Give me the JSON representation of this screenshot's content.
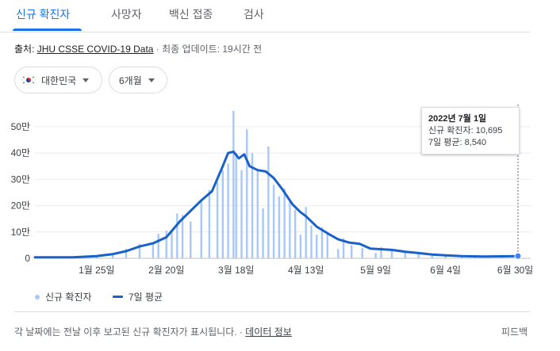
{
  "tabs": [
    {
      "label": "신규 확진자"
    },
    {
      "label": "사망자"
    },
    {
      "label": "백신 접종"
    },
    {
      "label": "검사"
    }
  ],
  "source": {
    "prefix": "출처: ",
    "link": "JHU CSSE COVID-19 Data",
    "suffix": " · 최종 업데이트: 19시간 전"
  },
  "filters": {
    "country": "대한민국",
    "range": "6개월"
  },
  "tooltip": {
    "date": "2022년 7월 1일",
    "cases": "신규 확진자: 10,695",
    "avg": "7일 평균: 8,540"
  },
  "legend": {
    "bars": "신규 확진자",
    "line": "7일 평균"
  },
  "footer": {
    "note": "각 날짜에는 전날 이후 보고된 신규 확진자가 표시됩니다. · ",
    "link": "데이터 정보",
    "feedback": "피드백"
  },
  "colors": {
    "accent": "#1a73e8",
    "bar": "#a8c7fa",
    "line": "#1a62c9"
  },
  "chart_data": {
    "type": "bar",
    "ylim": [
      0,
      560000
    ],
    "yticks": [
      {
        "label": "0",
        "value": 0
      },
      {
        "label": "10만",
        "value": 100000
      },
      {
        "label": "20만",
        "value": 200000
      },
      {
        "label": "30만",
        "value": 300000
      },
      {
        "label": "40만",
        "value": 400000
      },
      {
        "label": "50만",
        "value": 500000
      }
    ],
    "xticks": [
      {
        "label": "1월 25일",
        "date": "2022-01-25"
      },
      {
        "label": "2월 20일",
        "date": "2022-02-20"
      },
      {
        "label": "3월 18일",
        "date": "2022-03-18"
      },
      {
        "label": "4월 13일",
        "date": "2022-04-13"
      },
      {
        "label": "5월 9일",
        "date": "2022-05-09"
      },
      {
        "label": "6월 4일",
        "date": "2022-06-04"
      },
      {
        "label": "6월 30일",
        "date": "2022-06-30"
      }
    ],
    "xrange": [
      "2022-01-02",
      "2022-07-01"
    ],
    "series": [
      {
        "name": "신규 확진자",
        "kind": "bar",
        "points": [
          [
            "2022-01-10",
            3000
          ],
          [
            "2022-01-20",
            7000
          ],
          [
            "2022-01-25",
            8500
          ],
          [
            "2022-01-31",
            17000
          ],
          [
            "2022-02-05",
            36000
          ],
          [
            "2022-02-10",
            55000
          ],
          [
            "2022-02-15",
            58000
          ],
          [
            "2022-02-17",
            93000
          ],
          [
            "2022-02-20",
            105000
          ],
          [
            "2022-02-22",
            100000
          ],
          [
            "2022-02-24",
            170000
          ],
          [
            "2022-02-26",
            165000
          ],
          [
            "2022-03-01",
            140000
          ],
          [
            "2022-03-05",
            220000
          ],
          [
            "2022-03-08",
            260000
          ],
          [
            "2022-03-11",
            290000
          ],
          [
            "2022-03-13",
            335000
          ],
          [
            "2022-03-15",
            360000
          ],
          [
            "2022-03-17",
            560000
          ],
          [
            "2022-03-18",
            400000
          ],
          [
            "2022-03-20",
            335000
          ],
          [
            "2022-03-22",
            490000
          ],
          [
            "2022-03-24",
            400000
          ],
          [
            "2022-03-26",
            340000
          ],
          [
            "2022-03-28",
            190000
          ],
          [
            "2022-03-30",
            425000
          ],
          [
            "2022-04-01",
            280000
          ],
          [
            "2022-04-03",
            235000
          ],
          [
            "2022-04-05",
            265000
          ],
          [
            "2022-04-07",
            220000
          ],
          [
            "2022-04-09",
            185000
          ],
          [
            "2022-04-11",
            90000
          ],
          [
            "2022-04-13",
            195000
          ],
          [
            "2022-04-15",
            125000
          ],
          [
            "2022-04-17",
            90000
          ],
          [
            "2022-04-19",
            118000
          ],
          [
            "2022-04-21",
            90000
          ],
          [
            "2022-04-25",
            35000
          ],
          [
            "2022-04-27",
            76000
          ],
          [
            "2022-04-30",
            50000
          ],
          [
            "2022-05-04",
            40000
          ],
          [
            "2022-05-09",
            20000
          ],
          [
            "2022-05-11",
            43000
          ],
          [
            "2022-05-15",
            30000
          ],
          [
            "2022-05-20",
            25000
          ],
          [
            "2022-05-25",
            20000
          ],
          [
            "2022-05-30",
            10000
          ],
          [
            "2022-06-04",
            9000
          ],
          [
            "2022-06-10",
            7000
          ],
          [
            "2022-06-15",
            7500
          ],
          [
            "2022-06-20",
            6000
          ],
          [
            "2022-06-25",
            8000
          ],
          [
            "2022-06-30",
            9500
          ],
          [
            "2022-07-01",
            10695
          ]
        ]
      },
      {
        "name": "7일 평균",
        "kind": "line",
        "points": [
          [
            "2022-01-02",
            3500
          ],
          [
            "2022-01-16",
            4000
          ],
          [
            "2022-01-25",
            8500
          ],
          [
            "2022-01-31",
            16000
          ],
          [
            "2022-02-05",
            27000
          ],
          [
            "2022-02-10",
            45000
          ],
          [
            "2022-02-15",
            57000
          ],
          [
            "2022-02-20",
            80000
          ],
          [
            "2022-02-25",
            140000
          ],
          [
            "2022-03-01",
            180000
          ],
          [
            "2022-03-05",
            220000
          ],
          [
            "2022-03-09",
            255000
          ],
          [
            "2022-03-13",
            350000
          ],
          [
            "2022-03-15",
            400000
          ],
          [
            "2022-03-17",
            405000
          ],
          [
            "2022-03-19",
            380000
          ],
          [
            "2022-03-21",
            395000
          ],
          [
            "2022-03-23",
            350000
          ],
          [
            "2022-03-26",
            335000
          ],
          [
            "2022-03-29",
            330000
          ],
          [
            "2022-04-01",
            305000
          ],
          [
            "2022-04-04",
            265000
          ],
          [
            "2022-04-08",
            205000
          ],
          [
            "2022-04-11",
            175000
          ],
          [
            "2022-04-13",
            160000
          ],
          [
            "2022-04-17",
            120000
          ],
          [
            "2022-04-21",
            95000
          ],
          [
            "2022-04-25",
            72000
          ],
          [
            "2022-04-29",
            60000
          ],
          [
            "2022-05-03",
            55000
          ],
          [
            "2022-05-07",
            37000
          ],
          [
            "2022-05-10",
            35000
          ],
          [
            "2022-05-15",
            32000
          ],
          [
            "2022-05-20",
            25000
          ],
          [
            "2022-05-25",
            20000
          ],
          [
            "2022-05-30",
            14000
          ],
          [
            "2022-06-04",
            11000
          ],
          [
            "2022-06-10",
            8000
          ],
          [
            "2022-06-18",
            7000
          ],
          [
            "2022-06-25",
            7500
          ],
          [
            "2022-07-01",
            8540
          ]
        ]
      }
    ],
    "highlight": {
      "date": "2022-07-01",
      "value": 8540
    },
    "grid": true
  }
}
